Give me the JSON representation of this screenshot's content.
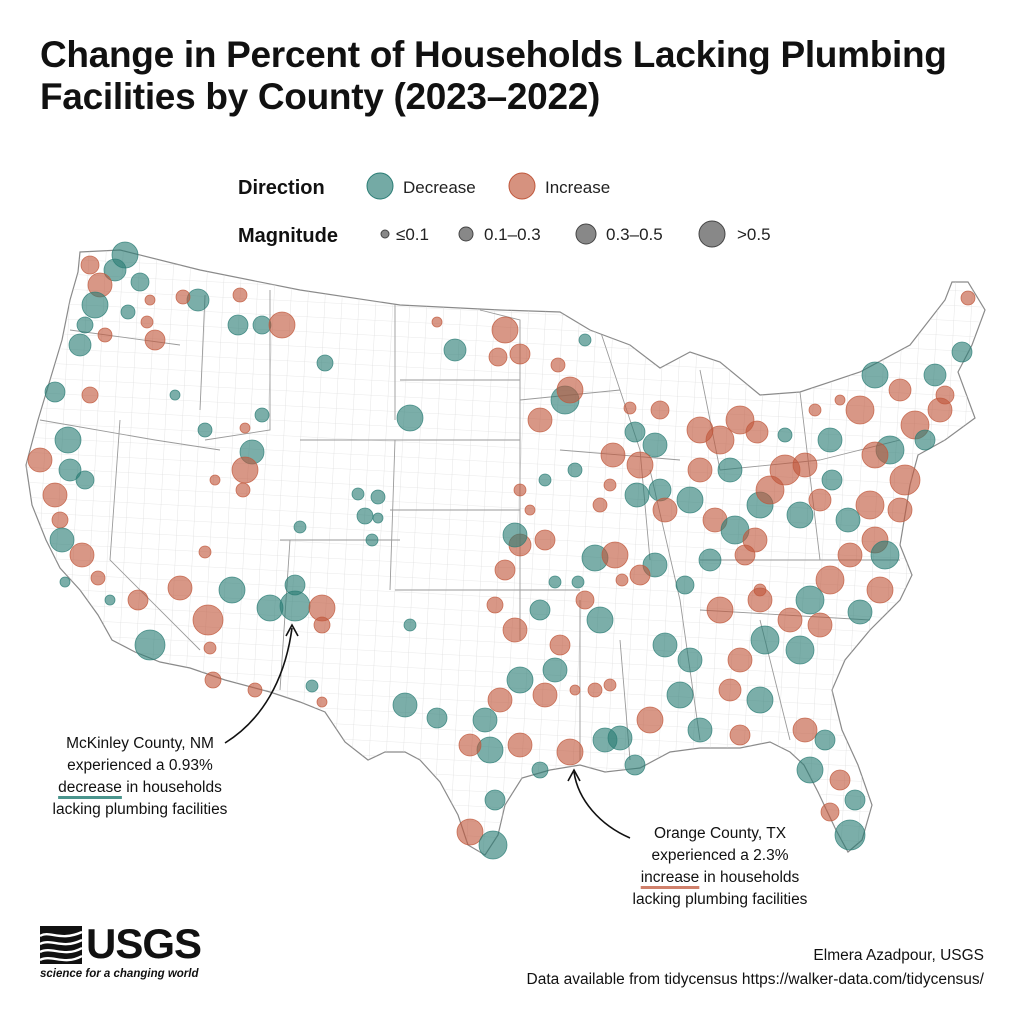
{
  "title": "Change in Percent of Households Lacking Plumbing Facilities by County (2023–2022)",
  "legend": {
    "direction_title": "Direction",
    "direction_items": [
      {
        "label": "Decrease",
        "color": "#2a7d75"
      },
      {
        "label": "Increase",
        "color": "#c0573b"
      }
    ],
    "magnitude_title": "Magnitude",
    "magnitude_items": [
      {
        "label": "≤0.1"
      },
      {
        "label": "0.1–0.3"
      },
      {
        "label": "0.3–0.5"
      },
      {
        "label": ">0.5"
      }
    ]
  },
  "annotations": {
    "mckinley": {
      "line1": "McKinley County, NM",
      "line2": "experienced a 0.93%",
      "keyword": "decrease",
      "line3_rest": " in households",
      "line4": "lacking plumbing facilities"
    },
    "orange": {
      "line1": "Orange County, TX",
      "line2": "experienced a 2.3%",
      "keyword": "increase",
      "line3_rest": " in households",
      "line4": "lacking plumbing facilities"
    }
  },
  "logo": {
    "wordmark": "USGS",
    "tagline": "science for a changing world"
  },
  "credits": {
    "author": "Elmera Azadpour, USGS",
    "source": "Data available from tidycensus https://walker-data.com/tidycensus/"
  },
  "colors": {
    "decrease": "#2a7d75",
    "increase": "#c0573b",
    "state_border": "#8a8a8a",
    "county_border": "#cfcfcf"
  }
}
